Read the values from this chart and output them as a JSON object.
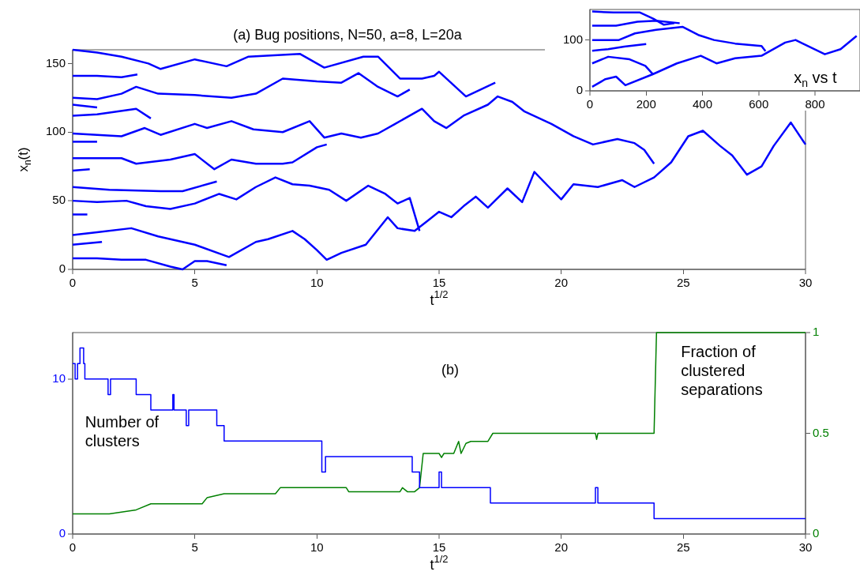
{
  "chart_data": [
    {
      "type": "line",
      "title": "(a) Bug positions, N=50, a=8, L=20a",
      "xlabel": "t$^{1/2}$",
      "ylabel": "x$_{n}$(t)",
      "xlim": [
        0,
        30
      ],
      "ylim": [
        0,
        160
      ],
      "xticks": [
        0,
        5,
        10,
        15,
        20,
        25,
        30
      ],
      "yticks": [
        0,
        50,
        100,
        150
      ],
      "series": [
        {
          "color": "#0000ff",
          "x": [
            0,
            1,
            2.4,
            3.5,
            5,
            6.4,
            7.5,
            8,
            9,
            9.5,
            10,
            10.4,
            11,
            12,
            12.9,
            13.3,
            14,
            14.5,
            15,
            15.5,
            16,
            16.5,
            17,
            17.8,
            18.4,
            18.9,
            19.5,
            20,
            20.5,
            21.5,
            22.5,
            23,
            23.8,
            24.5,
            25.2,
            25.8,
            26.5,
            27,
            27.6,
            28.2,
            28.7,
            29.4,
            30
          ],
          "values": [
            25,
            27,
            30,
            24,
            18,
            9,
            20,
            22,
            28,
            22,
            14,
            7,
            12,
            18,
            38,
            30,
            28,
            35,
            42,
            38,
            46,
            53,
            45,
            59,
            49,
            71,
            60,
            51,
            62,
            60,
            65,
            60,
            67,
            78,
            97,
            101,
            90,
            83,
            69,
            75,
            90,
            107,
            91
          ]
        },
        {
          "color": "#0000ff",
          "x": [
            0,
            1,
            2,
            2.95,
            3.6,
            5,
            5.5,
            6.5,
            7.4,
            8.6,
            9.7,
            10.3,
            11,
            11.8,
            12.5,
            13.2,
            14.3,
            14.8,
            15.3,
            16,
            17,
            17.4,
            18,
            18.5,
            19.6,
            20.5,
            21.3,
            22.3,
            23,
            23.4,
            23.8
          ],
          "values": [
            99,
            98,
            97,
            103,
            98,
            106,
            103,
            108,
            102,
            100,
            108,
            96,
            99,
            96,
            99,
            106,
            117,
            108,
            103,
            112,
            120,
            126,
            122,
            115,
            106,
            97,
            91,
            95,
            92,
            87,
            77
          ]
        },
        {
          "color": "#0000ff",
          "x": [
            0,
            1,
            2,
            2.6,
            3.5,
            5,
            6.5,
            7.5,
            8.6,
            10,
            11,
            11.7,
            12.5,
            13.3,
            13.8
          ],
          "values": [
            125,
            124,
            128,
            133,
            128,
            127,
            125,
            128,
            139,
            137,
            136,
            143,
            133,
            126,
            131
          ]
        },
        {
          "color": "#0000ff",
          "x": [
            0,
            1,
            2,
            3.1,
            3.6,
            5,
            6.3,
            7.2,
            9.3,
            10.3,
            11.9,
            12.5,
            13.4,
            14.3,
            14.8,
            15,
            16.1,
            17.3
          ],
          "values": [
            160,
            158,
            155,
            150,
            146,
            153,
            148,
            155,
            157,
            147,
            155,
            155,
            139,
            139,
            141,
            144,
            126,
            136
          ]
        },
        {
          "color": "#0000ff",
          "x": [
            0,
            2,
            2.6,
            4,
            5,
            5.8,
            6.5,
            7.5,
            8.6,
            9,
            10,
            10.4
          ],
          "values": [
            81,
            81,
            77,
            80,
            84,
            73,
            80,
            77,
            77,
            78,
            89,
            91
          ]
        },
        {
          "color": "#0000ff",
          "x": [
            0,
            1.5,
            3.6,
            4.5,
            5.9
          ],
          "values": [
            60,
            58,
            57,
            57,
            64
          ]
        },
        {
          "color": "#0000ff",
          "x": [
            0,
            1,
            2.2,
            3,
            4,
            5,
            6,
            6.7,
            7.5,
            8.3,
            9,
            9.7,
            10.5,
            11.2,
            12.1,
            12.8,
            13.3,
            13.8,
            14.2
          ],
          "values": [
            50,
            49,
            50,
            46,
            44,
            48,
            55,
            51,
            60,
            67,
            62,
            61,
            58,
            50,
            61,
            55,
            48,
            52,
            28
          ]
        },
        {
          "color": "#0000ff",
          "x": [
            0,
            1,
            2,
            2.65
          ],
          "values": [
            141,
            141,
            140,
            142
          ]
        },
        {
          "color": "#0000ff",
          "x": [
            0,
            1,
            2.6,
            3.2
          ],
          "values": [
            112,
            113,
            117,
            110
          ]
        },
        {
          "color": "#0000ff",
          "x": [
            0,
            1,
            2,
            3,
            4,
            4.5,
            5,
            5.5,
            6.3
          ],
          "values": [
            8,
            8,
            7,
            7,
            2,
            0,
            6,
            6,
            3
          ]
        },
        {
          "color": "#0000ff",
          "x": [
            0,
            1
          ],
          "values": [
            93,
            93
          ]
        },
        {
          "color": "#0000ff",
          "x": [
            0,
            0.7
          ],
          "values": [
            72,
            73
          ]
        },
        {
          "color": "#0000ff",
          "x": [
            0,
            1.2
          ],
          "values": [
            18,
            20
          ]
        },
        {
          "color": "#0000ff",
          "x": [
            0,
            1
          ],
          "values": [
            120,
            118
          ]
        },
        {
          "color": "#0000ff",
          "x": [
            0,
            0.6
          ],
          "values": [
            40,
            40
          ]
        }
      ]
    },
    {
      "type": "line",
      "annotations": [
        "x$_{n}$ vs t"
      ],
      "xlim": [
        0,
        960
      ],
      "ylim": [
        0,
        160
      ],
      "xticks": [
        0,
        200,
        400,
        600,
        800
      ],
      "yticks": [
        0,
        100
      ],
      "series": [
        {
          "color": "#0000ff",
          "x": [
            8,
            55,
            93,
            126,
            225,
            309,
            394,
            450,
            516,
            610,
            694,
            731,
            835,
            891,
            948
          ],
          "values": [
            8,
            23,
            28,
            11,
            33,
            54,
            69,
            54,
            64,
            69,
            95,
            100,
            72,
            82,
            108
          ]
        },
        {
          "color": "#0000ff",
          "x": [
            8,
            103,
            160,
            235,
            329,
            385,
            441,
            516,
            610,
            624
          ],
          "values": [
            100,
            100,
            113,
            120,
            126,
            110,
            100,
            93,
            88,
            78
          ]
        },
        {
          "color": "#0000ff",
          "x": [
            8,
            93,
            169,
            235,
            319
          ],
          "values": [
            128,
            128,
            136,
            138,
            133
          ]
        },
        {
          "color": "#0000ff",
          "x": [
            8,
            84,
            178,
            225,
            263,
            300
          ],
          "values": [
            156,
            154,
            154,
            142,
            130,
            133
          ]
        },
        {
          "color": "#0000ff",
          "x": [
            8,
            65,
            122,
            200
          ],
          "values": [
            79,
            82,
            87,
            92
          ]
        },
        {
          "color": "#0000ff",
          "x": [
            8,
            65,
            141,
            197,
            225
          ],
          "values": [
            54,
            67,
            62,
            49,
            32
          ]
        }
      ]
    },
    {
      "type": "step",
      "title": "(b)",
      "xlabel": "t$^{1/2}$",
      "annotations": [
        "Number of clusters",
        "Fraction of clustered separations"
      ],
      "xlim": [
        0,
        30
      ],
      "ylim": [
        0,
        13
      ],
      "xticks": [
        0,
        5,
        10,
        15,
        20,
        25,
        30
      ],
      "yticks": [
        0,
        10
      ],
      "y2lim": [
        0,
        1
      ],
      "y2ticks": [
        0,
        0.5,
        1
      ],
      "series": [
        {
          "color": "#0000ff",
          "x": [
            0,
            0.1,
            0.2,
            0.3,
            0.45,
            0.5,
            1.45,
            1.55,
            2.6,
            3.2,
            4.1,
            4.15,
            4.65,
            4.75,
            5.9,
            6.2,
            10.2,
            10.35,
            13.9,
            14.2,
            15,
            15.1,
            17.1,
            21.4,
            21.5,
            23.8,
            30
          ],
          "values": [
            11,
            10,
            11,
            12,
            11,
            10,
            9,
            10,
            9,
            8,
            9,
            8,
            7,
            8,
            7,
            6,
            4,
            5,
            4,
            3,
            4,
            3,
            2,
            3,
            2,
            1,
            1
          ]
        },
        {
          "color": "#008000",
          "type": "line",
          "axis": "y2",
          "x": [
            0,
            1.5,
            2.6,
            3.2,
            5.3,
            5.5,
            6.2,
            8.3,
            8.5,
            11.2,
            11.3,
            13.4,
            13.5,
            13.7,
            14,
            14.2,
            14.35,
            15,
            15.1,
            15.2,
            15.6,
            15.8,
            15.9,
            16.1,
            16.3,
            17,
            17.2,
            21.4,
            21.45,
            21.5,
            23.8,
            23.9,
            30
          ],
          "values": [
            0.1,
            0.1,
            0.12,
            0.15,
            0.15,
            0.18,
            0.2,
            0.2,
            0.23,
            0.23,
            0.21,
            0.21,
            0.23,
            0.21,
            0.21,
            0.23,
            0.4,
            0.4,
            0.38,
            0.4,
            0.4,
            0.46,
            0.4,
            0.45,
            0.46,
            0.46,
            0.5,
            0.5,
            0.47,
            0.5,
            0.5,
            1,
            1
          ]
        }
      ]
    }
  ]
}
